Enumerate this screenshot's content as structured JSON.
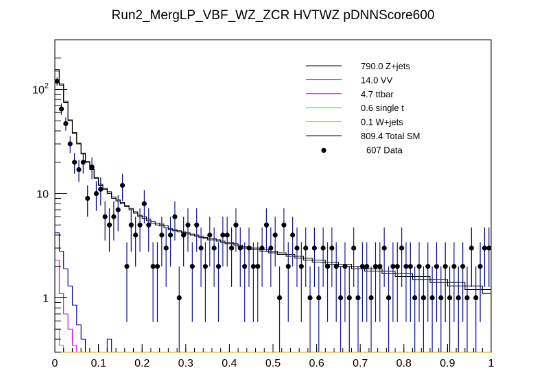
{
  "chart_data": {
    "type": "histogram",
    "title": "Run2_MergLP_VBF_WZ_ZCR HVTWZ  pDNNScore600",
    "xlabel": "",
    "ylabel": "",
    "xlim": [
      0,
      1
    ],
    "ylim": [
      0.3,
      300
    ],
    "yscale": "log",
    "grid": false,
    "legend_position": "top-right",
    "x_ticks": [
      {
        "value": 0,
        "label": "0"
      },
      {
        "value": 0.1,
        "label": "0.1"
      },
      {
        "value": 0.2,
        "label": "0.2"
      },
      {
        "value": 0.3,
        "label": "0.3"
      },
      {
        "value": 0.4,
        "label": "0.4"
      },
      {
        "value": 0.5,
        "label": "0.5"
      },
      {
        "value": 0.6,
        "label": "0.6"
      },
      {
        "value": 0.7,
        "label": "0.7"
      },
      {
        "value": 0.8,
        "label": "0.8"
      },
      {
        "value": 0.9,
        "label": "0.9"
      },
      {
        "value": 1,
        "label": "1"
      }
    ],
    "y_ticks": [
      {
        "value": 1,
        "base": "1",
        "exp": ""
      },
      {
        "value": 10,
        "base": "10",
        "exp": ""
      },
      {
        "value": 100,
        "base": "10",
        "exp": "2"
      }
    ],
    "bins": {
      "n": 100,
      "low": 0,
      "high": 1
    },
    "series": [
      {
        "name": "Z+jets",
        "yield": "790.0",
        "label": "790.0 Z+jets",
        "color": "#000000",
        "style": "step",
        "values": [
          150,
          110,
          75,
          50,
          38,
          30,
          24,
          20,
          17,
          14,
          12,
          11,
          10,
          9,
          8.5,
          8,
          7.5,
          7,
          6.5,
          6,
          5.8,
          5.5,
          5.2,
          5,
          4.9,
          4.7,
          4.5,
          4.4,
          4.3,
          4.2,
          4.1,
          4,
          3.9,
          3.8,
          3.7,
          3.6,
          3.6,
          3.5,
          3.4,
          3.3,
          3.3,
          3.2,
          3.1,
          3,
          3,
          2.9,
          2.9,
          2.8,
          2.8,
          2.7,
          2.7,
          2.6,
          2.6,
          2.5,
          2.5,
          2.4,
          2.4,
          2.3,
          2.3,
          2.2,
          2.2,
          2.2,
          2.1,
          2.1,
          2.1,
          2,
          2,
          2,
          1.9,
          1.9,
          1.9,
          1.8,
          1.8,
          1.8,
          1.8,
          1.7,
          1.7,
          1.7,
          1.6,
          1.6,
          1.6,
          1.6,
          1.5,
          1.5,
          1.5,
          1.5,
          1.4,
          1.4,
          1.4,
          1.4,
          1.3,
          1.3,
          1.3,
          1.3,
          1.2,
          1.2,
          1.2,
          1.2,
          1.1,
          1.1
        ]
      },
      {
        "name": "VV",
        "yield": "14.0",
        "label": "14.0 VV",
        "color": "#00008b",
        "style": "step",
        "values": [
          4.2,
          2.8,
          1.9,
          1.3,
          0.85,
          0.55,
          0.4,
          0.3,
          0.28,
          0.25,
          0.22,
          0.2,
          0.4,
          0.25,
          0.2,
          0.18,
          0.17,
          0.16,
          0.15,
          0.14,
          0.13,
          0.13,
          0.12,
          0.12,
          0.11,
          0.11,
          0.1,
          0.1,
          0.1,
          0.1,
          0.09,
          0.09,
          0.09,
          0.09,
          0.08,
          0.08,
          0.08,
          0.08,
          0.08,
          0.07,
          0.07,
          0.07,
          0.07,
          0.07,
          0.07,
          0.06,
          0.06,
          0.06,
          0.06,
          0.06,
          0.06,
          0.06,
          0.05,
          0.05,
          0.05,
          0.05,
          0.05,
          0.05,
          0.05,
          0.05,
          0.05,
          0.05,
          0.05,
          0.04,
          0.04,
          0.04,
          0.04,
          0.04,
          0.04,
          0.04,
          0.04,
          0.04,
          0.04,
          0.04,
          0.04,
          0.04,
          0.04,
          0.04,
          0.03,
          0.03,
          0.03,
          0.03,
          0.03,
          0.03,
          0.03,
          0.03,
          0.03,
          0.03,
          0.03,
          0.03,
          0.03,
          0.03,
          0.03,
          0.03,
          0.03,
          0.03,
          0.03,
          0.03,
          0.03,
          0.03
        ]
      },
      {
        "name": "ttbar",
        "yield": "4.7",
        "label": "4.7 ttbar",
        "color": "#cc00cc",
        "style": "step",
        "values": [
          2.3,
          1.1,
          0.7,
          0.5,
          0.35,
          0.2,
          0.15,
          0.1,
          0.08,
          0.06,
          0.05,
          0.05,
          0.04,
          0.04,
          0.03,
          0.03,
          0.03,
          0.03,
          0.02,
          0.02,
          0.02,
          0.02,
          0.02,
          0.02,
          0.02,
          0.02,
          0.02,
          0.01,
          0.01,
          0.01,
          0.01,
          0.01,
          0.01,
          0.01,
          0.01,
          0.01,
          0.01,
          0.01,
          0.01,
          0.01,
          0.01,
          0.01,
          0.01,
          0.01,
          0.01,
          0.01,
          0.01,
          0.01,
          0.01,
          0.01,
          0.01,
          0.01,
          0.01,
          0.01,
          0.01,
          0.01,
          0.01,
          0.01,
          0.01,
          0.01,
          0.01,
          0.01,
          0.01,
          0.01,
          0.01,
          0.01,
          0.01,
          0.01,
          0.01,
          0.01,
          0.01,
          0.01,
          0.01,
          0.01,
          0.01,
          0.01,
          0.01,
          0.01,
          0.01,
          0.01,
          0.01,
          0.01,
          0.01,
          0.01,
          0.01,
          0.01,
          0.01,
          0.01,
          0.01,
          0.01,
          0.01,
          0.01,
          0.01,
          0.01,
          0.01,
          0.01,
          0.01,
          0.01,
          0.01,
          0.01
        ]
      },
      {
        "name": "single t",
        "yield": "0.6",
        "label": "0.6 single t",
        "color": "#33bb33",
        "style": "step",
        "values": [
          0.5,
          0.35,
          0.2,
          0.1,
          0.05,
          0.03,
          0.02,
          0.02,
          0.01,
          0.01,
          0.01,
          0.01,
          0.01,
          0.01,
          0.01,
          0.01,
          0.01,
          0.01,
          0.01,
          0.01,
          0.01,
          0.01,
          0.01,
          0.01,
          0.01,
          0.01,
          0.01,
          0.01,
          0.01,
          0.01,
          0.01,
          0.01,
          0.01,
          0.01,
          0.01,
          0.01,
          0.01,
          0.01,
          0.01,
          0.01,
          0.01,
          0.01,
          0.01,
          0.01,
          0.01,
          0.01,
          0.01,
          0.01,
          0.01,
          0.01,
          0.01,
          0.01,
          0.01,
          0.01,
          0.01,
          0.01,
          0.01,
          0.01,
          0.01,
          0.01,
          0.01,
          0.01,
          0.01,
          0.01,
          0.01,
          0.01,
          0.01,
          0.01,
          0.01,
          0.01,
          0.01,
          0.01,
          0.01,
          0.01,
          0.01,
          0.01,
          0.01,
          0.01,
          0.01,
          0.01,
          0.01,
          0.01,
          0.01,
          0.01,
          0.01,
          0.01,
          0.01,
          0.01,
          0.01,
          0.01,
          0.01,
          0.01,
          0.01,
          0.01,
          0.01,
          0.01,
          0.01,
          0.01,
          0.01,
          0.01
        ]
      },
      {
        "name": "W+jets",
        "yield": "0.1",
        "label": "0.1 W+jets",
        "color": "#ddaa00",
        "style": "step",
        "values": [
          0.05,
          0.03,
          0.02,
          0.02,
          0.01,
          0.01,
          0.01,
          0.01,
          0.01,
          0.01,
          0.01,
          0.01,
          0.01,
          0.01,
          0.01,
          0.01,
          0.01,
          0.01,
          0.01,
          0.01,
          0.01,
          0.01,
          0.01,
          0.01,
          0.01,
          0.01,
          0.01,
          0.01,
          0.01,
          0.01,
          0.01,
          0.01,
          0.01,
          0.01,
          0.01,
          0.01,
          0.01,
          0.01,
          0.01,
          0.01,
          0.01,
          0.01,
          0.01,
          0.01,
          0.01,
          0.01,
          0.01,
          0.01,
          0.01,
          0.01,
          0.01,
          0.01,
          0.01,
          0.01,
          0.01,
          0.01,
          0.01,
          0.01,
          0.01,
          0.01,
          0.01,
          0.01,
          0.01,
          0.01,
          0.01,
          0.01,
          0.01,
          0.01,
          0.01,
          0.01,
          0.01,
          0.01,
          0.01,
          0.01,
          0.01,
          0.01,
          0.01,
          0.01,
          0.01,
          0.01,
          0.01,
          0.01,
          0.01,
          0.01,
          0.01,
          0.01,
          0.01,
          0.01,
          0.01,
          0.01,
          0.01,
          0.01,
          0.01,
          0.01,
          0.01,
          0.01,
          0.01,
          0.01,
          0.01,
          0.01
        ]
      },
      {
        "name": "Total SM",
        "yield": "809.4",
        "label": "809.4 Total SM",
        "color": "#000000",
        "style": "step",
        "values": [
          155,
          113,
          77,
          51,
          38.5,
          30.5,
          24.5,
          20.3,
          17.3,
          14.3,
          12.3,
          11.3,
          10.4,
          9.3,
          8.7,
          8.2,
          7.7,
          7.2,
          6.7,
          6.2,
          6,
          5.7,
          5.4,
          5.2,
          5.1,
          4.9,
          4.6,
          4.5,
          4.4,
          4.3,
          4.2,
          4.1,
          4,
          3.9,
          3.8,
          3.7,
          3.7,
          3.6,
          3.5,
          3.4,
          3.4,
          3.3,
          3.2,
          3.1,
          3.1,
          3,
          3,
          2.9,
          2.9,
          2.8,
          2.8,
          2.7,
          2.7,
          2.6,
          2.6,
          2.5,
          2.5,
          2.4,
          2.4,
          2.3,
          2.3,
          2.3,
          2.2,
          2.2,
          2.2,
          2.1,
          2.1,
          2.1,
          2,
          2,
          2,
          1.9,
          1.9,
          1.9,
          1.9,
          1.8,
          1.8,
          1.8,
          1.7,
          1.7,
          1.7,
          1.7,
          1.6,
          1.6,
          1.6,
          1.6,
          1.5,
          1.5,
          1.5,
          1.5,
          1.4,
          1.4,
          1.4,
          1.4,
          1.3,
          1.3,
          1.3,
          1.3,
          1.2,
          1.2
        ]
      }
    ],
    "data": {
      "name": "Data",
      "yield": "607",
      "label": "607 Data",
      "color": "#000000",
      "style": "points",
      "points": [
        [
          0.005,
          120
        ],
        [
          0.015,
          65
        ],
        [
          0.025,
          47
        ],
        [
          0.035,
          30
        ],
        [
          0.045,
          20
        ],
        [
          0.055,
          17
        ],
        [
          0.065,
          20
        ],
        [
          0.075,
          9
        ],
        [
          0.085,
          18
        ],
        [
          0.095,
          10
        ],
        [
          0.105,
          11
        ],
        [
          0.115,
          6
        ],
        [
          0.125,
          5
        ],
        [
          0.135,
          6
        ],
        [
          0.145,
          7
        ],
        [
          0.155,
          12
        ],
        [
          0.165,
          2
        ],
        [
          0.175,
          5
        ],
        [
          0.185,
          4
        ],
        [
          0.195,
          5
        ],
        [
          0.205,
          8
        ],
        [
          0.215,
          5
        ],
        [
          0.225,
          2
        ],
        [
          0.235,
          2
        ],
        [
          0.245,
          4
        ],
        [
          0.255,
          3
        ],
        [
          0.265,
          4
        ],
        [
          0.275,
          6
        ],
        [
          0.285,
          1
        ],
        [
          0.295,
          4
        ],
        [
          0.305,
          5
        ],
        [
          0.315,
          2
        ],
        [
          0.325,
          5
        ],
        [
          0.335,
          3
        ],
        [
          0.345,
          2
        ],
        [
          0.355,
          4
        ],
        [
          0.365,
          3
        ],
        [
          0.375,
          2
        ],
        [
          0.385,
          4
        ],
        [
          0.395,
          4
        ],
        [
          0.405,
          3
        ],
        [
          0.415,
          5
        ],
        [
          0.425,
          3
        ],
        [
          0.435,
          2
        ],
        [
          0.445,
          3
        ],
        [
          0.455,
          2
        ],
        [
          0.465,
          2
        ],
        [
          0.475,
          3
        ],
        [
          0.485,
          5
        ],
        [
          0.495,
          3
        ],
        [
          0.505,
          4
        ],
        [
          0.515,
          1
        ],
        [
          0.525,
          5
        ],
        [
          0.535,
          2
        ],
        [
          0.545,
          4
        ],
        [
          0.555,
          3
        ],
        [
          0.565,
          2
        ],
        [
          0.575,
          3
        ],
        [
          0.585,
          1
        ],
        [
          0.595,
          3
        ],
        [
          0.605,
          1
        ],
        [
          0.615,
          3
        ],
        [
          0.625,
          2
        ],
        [
          0.635,
          3
        ],
        [
          0.645,
          2
        ],
        [
          0.655,
          1
        ],
        [
          0.665,
          2
        ],
        [
          0.675,
          1
        ],
        [
          0.685,
          3
        ],
        [
          0.695,
          1
        ],
        [
          0.705,
          2
        ],
        [
          0.715,
          2
        ],
        [
          0.725,
          1
        ],
        [
          0.735,
          2
        ],
        [
          0.745,
          2
        ],
        [
          0.755,
          3
        ],
        [
          0.765,
          1
        ],
        [
          0.775,
          2
        ],
        [
          0.785,
          2
        ],
        [
          0.795,
          3
        ],
        [
          0.805,
          2
        ],
        [
          0.815,
          2
        ],
        [
          0.825,
          1
        ],
        [
          0.835,
          2
        ],
        [
          0.845,
          1
        ],
        [
          0.855,
          2
        ],
        [
          0.865,
          1
        ],
        [
          0.875,
          2
        ],
        [
          0.885,
          1
        ],
        [
          0.895,
          2
        ],
        [
          0.905,
          1
        ],
        [
          0.915,
          2
        ],
        [
          0.925,
          1
        ],
        [
          0.935,
          2
        ],
        [
          0.945,
          1
        ],
        [
          0.955,
          3
        ],
        [
          0.965,
          1
        ],
        [
          0.975,
          2
        ],
        [
          0.985,
          3
        ],
        [
          0.995,
          3
        ]
      ]
    }
  }
}
